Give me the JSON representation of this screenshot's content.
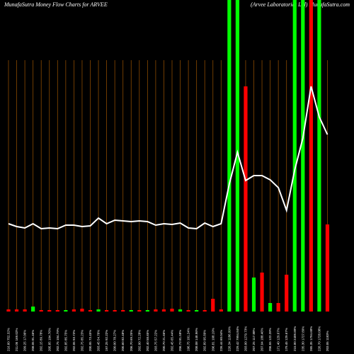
{
  "chart_data": {
    "type": "bar",
    "title": "MunafaSutra  Money Flow  Charts for ARVEE",
    "title_right": "(Arvee  Laboratories  Ltd) MunafaSutra.com",
    "categories": [
      "216.60 752.32%",
      "211.05 169.02%",
      "209.25 17.06%",
      "208.05 81.46%",
      "202.15 89.78%",
      "205.85 104.76%",
      "202.75 104.79%",
      "202.85 85.75%",
      "202.05 93.73%",
      "202.75 85.23%",
      "200.95 73.45%",
      "203.45 54.76%",
      "197.25 92.22%",
      "200.00 78.27%",
      "200.60 82.48%",
      "206.70 69.25%",
      "202.00 72.28%",
      "202.40 58.65%",
      "203.75 57.22%",
      "200.70 21.66%",
      "202.45 65.44%",
      "206.73 81.58%",
      "196.75 101.24%",
      "208.08 148.96%",
      "202.89 95.89%",
      "206.81 108.19%",
      "226.44 60.04%",
      "226.34 1186.99%",
      "229.42 7994.84%",
      "203.00 1279.73%",
      "207.25 117.88%",
      "207.04 188.46%",
      "206.55 122.28%",
      "171.40 129.67%",
      "179.45 129.67%",
      "215.00 2409.89%",
      "235.30 1727.89%",
      "265.35 1794.68%",
      "226.70 1728.08%",
      "203.05 1183%"
    ],
    "values": [
      3,
      3,
      3,
      7,
      2,
      2,
      2,
      2,
      3,
      4,
      2,
      3,
      2,
      2,
      2,
      2,
      2,
      2,
      3,
      3,
      4,
      3,
      2,
      2,
      2,
      18,
      3,
      440,
      440,
      318,
      48,
      55,
      12,
      12,
      52,
      440,
      440,
      440,
      440,
      123
    ],
    "colors": [
      "#ff0000",
      "#ff0000",
      "#ff0000",
      "#00ff00",
      "#ff0000",
      "#ff0000",
      "#ff0000",
      "#00ff00",
      "#ff0000",
      "#ff0000",
      "#ff0000",
      "#00ff00",
      "#ff0000",
      "#ff0000",
      "#ff0000",
      "#00ff00",
      "#ff0000",
      "#00ff00",
      "#ff0000",
      "#ff0000",
      "#ff0000",
      "#00ff00",
      "#ff0000",
      "#00ff00",
      "#ff0000",
      "#ff0000",
      "#ff0000",
      "#00ff00",
      "#00ff00",
      "#ff0000",
      "#00ff00",
      "#ff0000",
      "#00ff00",
      "#ff0000",
      "#ff0000",
      "#00ff00",
      "#00ff00",
      "#ff0000",
      "#00ff00",
      "#ff0000"
    ],
    "line": {
      "color": "#ffffff",
      "values": [
        124,
        120,
        118,
        124,
        117,
        118,
        117,
        122,
        122,
        120,
        121,
        132,
        124,
        129,
        128,
        127,
        128,
        127,
        122,
        124,
        123,
        125,
        118,
        117,
        125,
        120,
        124,
        180,
        225,
        185,
        192,
        192,
        186,
        175,
        143,
        200,
        245,
        318,
        275,
        250
      ]
    },
    "grid_color": "#8b4a00",
    "ylim": [
      0,
      440
    ]
  }
}
